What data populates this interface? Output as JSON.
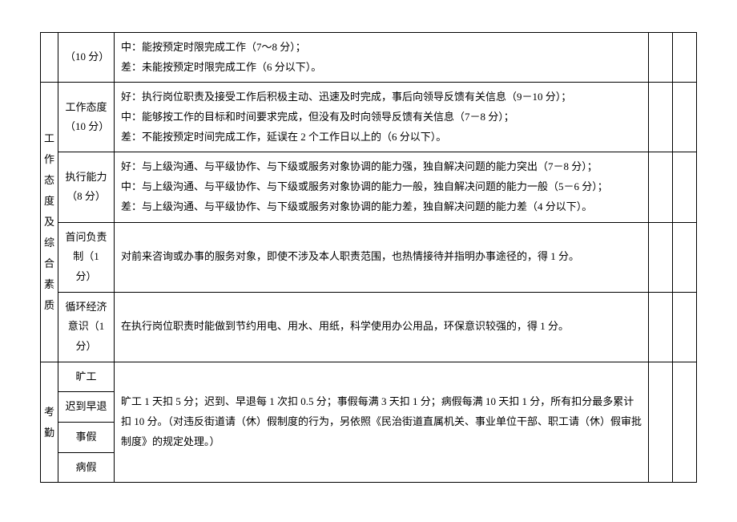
{
  "rows": [
    {
      "label": "（10 分）",
      "content": "中：能按预定时限完成工作（7～8 分）；\n差：未能按预定时限完成工作（6 分以下）。"
    },
    {
      "label": "工作态度（10 分）",
      "content": "好：执行岗位职责及接受工作后积极主动、迅速及时完成，事后向领导反馈有关信息（9－10 分）；\n中：能够按工作的目标和时间要求完成，但没有及时向领导反馈有关信息（7－8 分）；\n差：不能按预定时间完成工作，延误在 2 个工作日以上的（6 分以下）。"
    },
    {
      "label": "执行能力（8 分）",
      "content": "好：与上级沟通、与平级协作、与下级或服务对象协调的能力强，独自解决问题的能力突出（7－8 分）；\n中：与上级沟通、与平级协作、与下级或服务对象协调的能力一般，独自解决问题的能力一般（5－6 分）；\n差：与上级沟通、与平级协作、与下级或服务对象协调的能力差，独自解决问题的能力差（4 分以下）。"
    },
    {
      "label": "首问负责制（1 分）",
      "content": "对前来咨询或办事的服务对象，即使不涉及本人职责范围，也热情接待并指明办事途径的，得 1 分。"
    },
    {
      "label": "循环经济意识（1 分）",
      "content": "在执行岗位职责时能做到节约用电、用水、用纸，科学使用办公用品，环保意识较强的，得 1 分。"
    }
  ],
  "groupLabel": "工作态度及综合素质",
  "attendance": {
    "groupLabel": "考勤",
    "sub": [
      "旷工",
      "迟到早退",
      "事假",
      "病假"
    ],
    "content": "旷工 1 天扣 5 分；迟到、早退每 1 次扣 0.5 分；事假每满 3 天扣 1 分；病假每满 10 天扣 1 分，所有扣分最多累计扣 10 分。（对违反街道请（休）假制度的行为，另依照《民治街道直属机关、事业单位干部、职工请（休）假审批制度》的规定处理。）"
  }
}
